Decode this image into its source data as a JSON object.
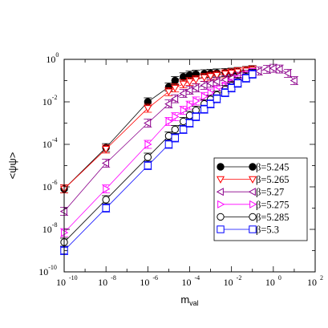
{
  "chart_data": {
    "type": "scatter",
    "title": "",
    "xlabel": "m",
    "xlabel_sub": "val",
    "ylabel": "<ψψ>",
    "xscale": "log",
    "yscale": "log",
    "xlim": [
      1e-10,
      100
    ],
    "ylim": [
      1e-10,
      1
    ],
    "x_ticks": [
      {
        "base": "10",
        "exp": "-10"
      },
      {
        "base": "10",
        "exp": "-8"
      },
      {
        "base": "10",
        "exp": "-6"
      },
      {
        "base": "10",
        "exp": "-4"
      },
      {
        "base": "10",
        "exp": "-2"
      },
      {
        "base": "10",
        "exp": "0"
      },
      {
        "base": "10",
        "exp": "2"
      }
    ],
    "y_ticks": [
      {
        "base": "10",
        "exp": "-10"
      },
      {
        "base": "10",
        "exp": "-8"
      },
      {
        "base": "10",
        "exp": "-6"
      },
      {
        "base": "10",
        "exp": "-4"
      },
      {
        "base": "10",
        "exp": "-2"
      },
      {
        "base": "10",
        "exp": "0"
      }
    ],
    "legend_position": "lower-right",
    "grid": false,
    "series": [
      {
        "name": "β=5.245",
        "marker": "filled-circle",
        "color": "#000000",
        "x": [
          1e-10,
          1e-08,
          1e-06,
          1e-05,
          2e-05,
          5e-05,
          0.0001,
          0.0002,
          0.0005,
          0.001,
          0.002,
          0.005,
          0.01,
          0.02,
          0.05,
          0.1
        ],
        "y": [
          8e-07,
          7e-05,
          0.01,
          0.05,
          0.1,
          0.15,
          0.18,
          0.2,
          0.21,
          0.22,
          0.23,
          0.24,
          0.25,
          0.27,
          0.3,
          0.33
        ]
      },
      {
        "name": "β=5.265",
        "marker": "triangle-down",
        "color": "#ff0000",
        "x": [
          1e-10,
          1e-08,
          1e-06,
          1e-05,
          2e-05,
          5e-05,
          0.0001,
          0.0002,
          0.0005,
          0.001,
          0.002,
          0.005,
          0.01,
          0.02,
          0.05,
          0.1
        ],
        "y": [
          8e-07,
          6e-05,
          0.005,
          0.03,
          0.045,
          0.07,
          0.09,
          0.11,
          0.14,
          0.16,
          0.18,
          0.21,
          0.23,
          0.26,
          0.29,
          0.32
        ]
      },
      {
        "name": "β=5.27",
        "marker": "triangle-left",
        "color": "#8b008b",
        "x": [
          1e-10,
          1e-08,
          1e-06,
          1e-05,
          2e-05,
          5e-05,
          0.0001,
          0.0002,
          0.0005,
          0.001,
          0.002,
          0.005,
          0.01,
          0.02,
          0.05,
          0.1,
          0.2,
          0.5,
          1,
          2,
          5,
          10
        ],
        "y": [
          7e-08,
          1.3e-05,
          0.001,
          0.008,
          0.014,
          0.025,
          0.035,
          0.045,
          0.06,
          0.075,
          0.09,
          0.11,
          0.13,
          0.16,
          0.2,
          0.24,
          0.28,
          0.34,
          0.38,
          0.35,
          0.22,
          0.1
        ]
      },
      {
        "name": "β=5.275",
        "marker": "triangle-right",
        "color": "#ff00ff",
        "x": [
          1e-10,
          1e-08,
          1e-06,
          1e-05,
          2e-05,
          5e-05,
          0.0001,
          0.0002,
          0.0005,
          0.001,
          0.002,
          0.005,
          0.01,
          0.02,
          0.05,
          0.1
        ],
        "y": [
          7e-09,
          8e-07,
          0.0001,
          0.0012,
          0.002,
          0.004,
          0.007,
          0.011,
          0.018,
          0.026,
          0.036,
          0.055,
          0.075,
          0.11,
          0.17,
          0.24
        ]
      },
      {
        "name": "β=5.285",
        "marker": "open-circle",
        "color": "#000000",
        "x": [
          1e-10,
          1e-08,
          1e-06,
          1e-05,
          2e-05,
          5e-05,
          0.0001,
          0.0002,
          0.0005,
          0.001,
          0.002,
          0.005,
          0.01,
          0.02,
          0.05,
          0.1
        ],
        "y": [
          2.5e-09,
          2.5e-07,
          2.5e-05,
          0.00025,
          0.0005,
          0.0012,
          0.0023,
          0.004,
          0.008,
          0.013,
          0.021,
          0.038,
          0.058,
          0.09,
          0.15,
          0.22
        ]
      },
      {
        "name": "β=5.3",
        "marker": "open-square",
        "color": "#0000ff",
        "x": [
          1e-10,
          1e-08,
          1e-06,
          1e-05,
          2e-05,
          5e-05,
          0.0001,
          0.0002,
          0.0005,
          0.001,
          0.002,
          0.005,
          0.01,
          0.02,
          0.05,
          0.1
        ],
        "y": [
          1e-09,
          1e-07,
          1e-05,
          0.0001,
          0.0002,
          0.0005,
          0.001,
          0.002,
          0.0045,
          0.008,
          0.014,
          0.027,
          0.045,
          0.075,
          0.13,
          0.2
        ]
      }
    ]
  }
}
